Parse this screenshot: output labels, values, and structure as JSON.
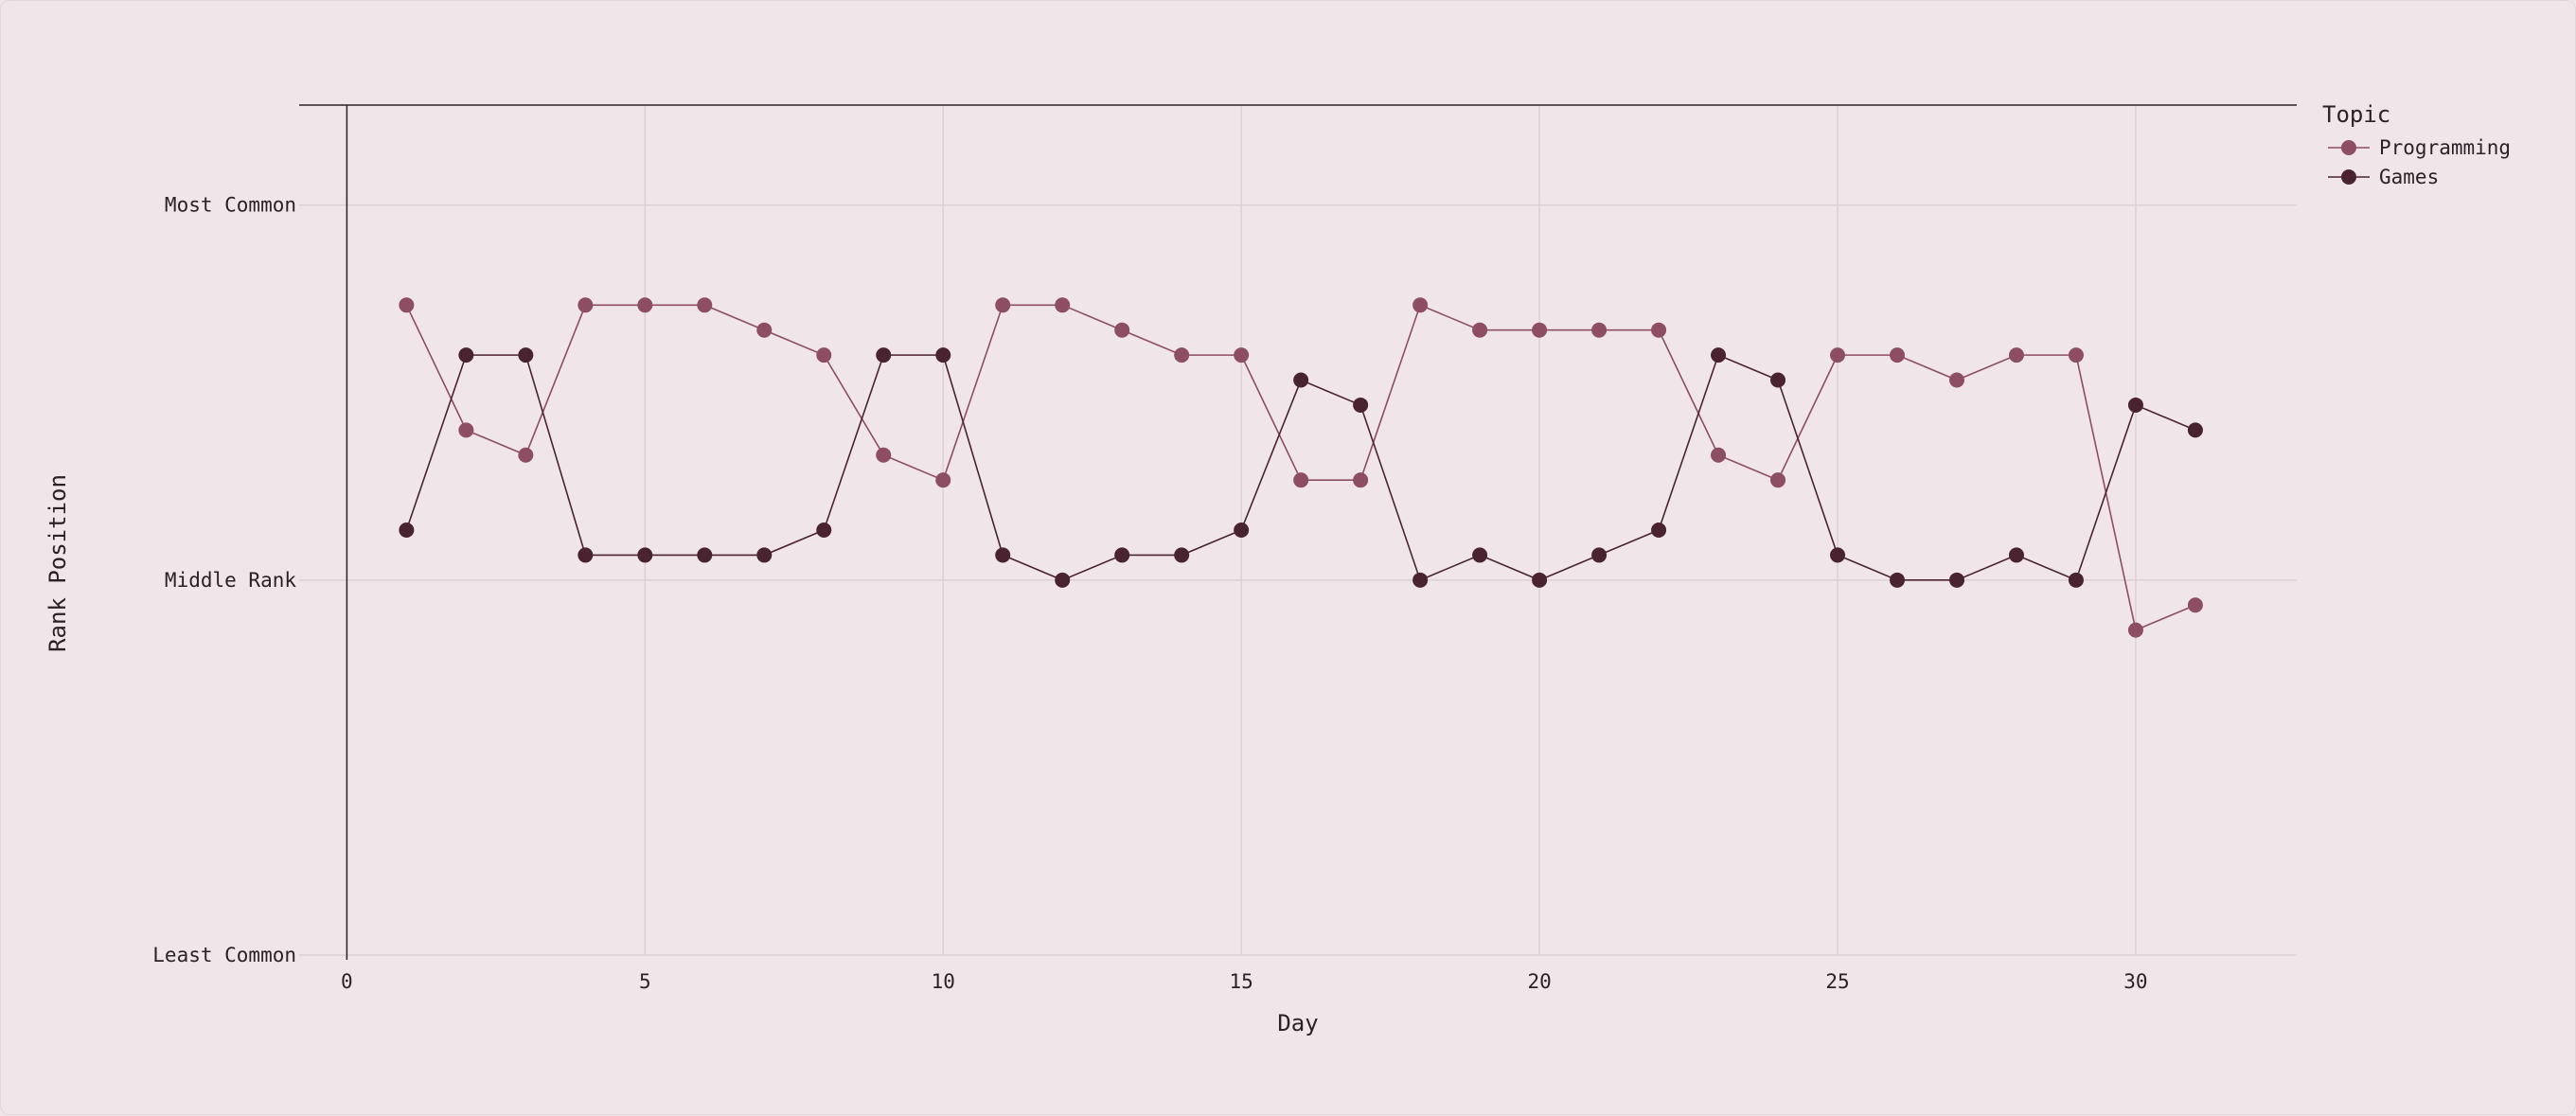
{
  "chart_data": {
    "type": "line",
    "xlabel": "Day",
    "ylabel": "Rank Position",
    "xlim": [
      -0.8,
      32.7
    ],
    "ylim": [
      0,
      3.4
    ],
    "x_ticks": [
      0,
      5,
      10,
      15,
      20,
      25,
      30
    ],
    "y_ticks": [
      {
        "value": 0,
        "label": "Least Common"
      },
      {
        "value": 1.5,
        "label": "Middle Rank"
      },
      {
        "value": 3,
        "label": "Most Common"
      }
    ],
    "grid": true,
    "legend": {
      "title": "Topic",
      "placement": "top-right"
    },
    "colors": {
      "programming": "#8d4d62",
      "games": "#4a2330",
      "background": "#f0e6ea"
    },
    "series": [
      {
        "name": "Programming",
        "color": "#8d4d62",
        "x": [
          1,
          2,
          3,
          4,
          5,
          6,
          7,
          8,
          9,
          10,
          11,
          12,
          13,
          14,
          15,
          16,
          17,
          18,
          19,
          20,
          21,
          22,
          23,
          24,
          25,
          26,
          27,
          28,
          29,
          30,
          31
        ],
        "y": [
          2.6,
          2.1,
          2.0,
          2.6,
          2.6,
          2.6,
          2.5,
          2.4,
          2.0,
          1.9,
          2.6,
          2.6,
          2.5,
          2.4,
          2.4,
          1.9,
          1.9,
          2.6,
          2.5,
          2.5,
          2.5,
          2.5,
          2.0,
          1.9,
          2.4,
          2.4,
          2.3,
          2.4,
          2.4,
          1.3,
          1.4
        ]
      },
      {
        "name": "Games",
        "color": "#4a2330",
        "x": [
          1,
          2,
          3,
          4,
          5,
          6,
          7,
          8,
          9,
          10,
          11,
          12,
          13,
          14,
          15,
          16,
          17,
          18,
          19,
          20,
          21,
          22,
          23,
          24,
          25,
          26,
          27,
          28,
          29,
          30,
          31
        ],
        "y": [
          1.7,
          2.4,
          2.4,
          1.6,
          1.6,
          1.6,
          1.6,
          1.7,
          2.4,
          2.4,
          1.6,
          1.5,
          1.6,
          1.6,
          1.7,
          2.3,
          2.2,
          1.5,
          1.6,
          1.5,
          1.6,
          1.7,
          2.4,
          2.3,
          1.6,
          1.5,
          1.5,
          1.6,
          1.5,
          2.2,
          2.1
        ]
      }
    ]
  }
}
